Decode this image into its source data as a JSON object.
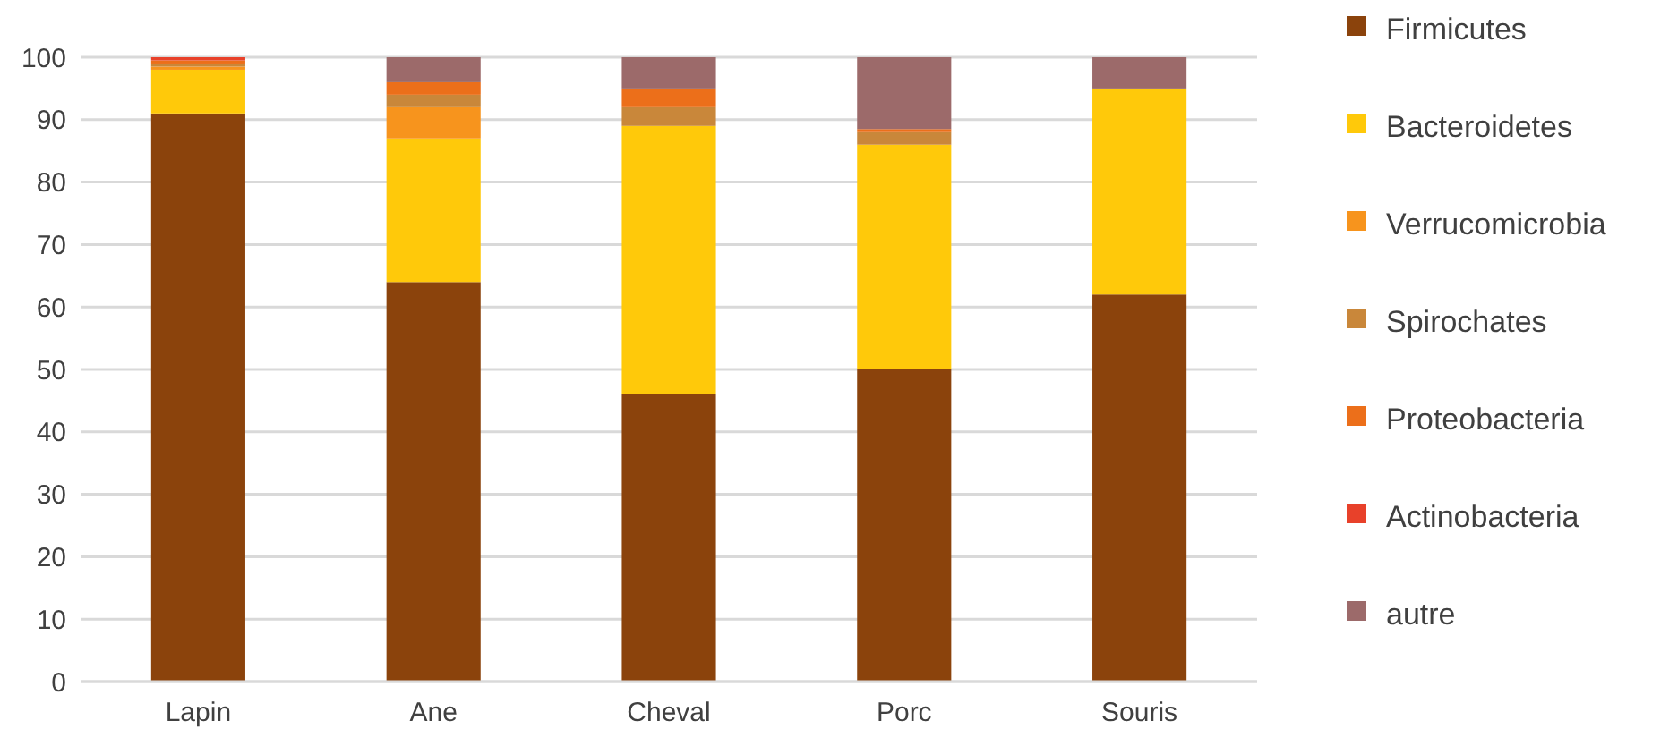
{
  "chart_data": {
    "type": "bar",
    "stacked": true,
    "categories": [
      "Lapin",
      "Ane",
      "Cheval",
      "Porc",
      "Souris"
    ],
    "series": [
      {
        "name": "Firmicutes",
        "color": "#8b430c",
        "values": [
          91,
          64,
          46,
          50,
          62
        ]
      },
      {
        "name": "Bacteroidetes",
        "color": "#ffc90a",
        "values": [
          7,
          23,
          43,
          36,
          33
        ]
      },
      {
        "name": "Verrucomicrobia",
        "color": "#f7941d",
        "values": [
          0.5,
          5,
          0,
          0,
          0
        ]
      },
      {
        "name": "Spirochates",
        "color": "#c9873a",
        "values": [
          0.5,
          2,
          3,
          2,
          0
        ]
      },
      {
        "name": "Proteobacteria",
        "color": "#ec6f1a",
        "values": [
          0.5,
          2,
          3,
          0.5,
          0
        ]
      },
      {
        "name": "Actinobacteria",
        "color": "#e8412a",
        "values": [
          0.5,
          0,
          0,
          0,
          0
        ]
      },
      {
        "name": "autre",
        "color": "#9c6a6a",
        "values": [
          0,
          4,
          5,
          11.5,
          5
        ]
      }
    ],
    "ylim": [
      0,
      100
    ],
    "yticks": [
      0,
      10,
      20,
      30,
      40,
      50,
      60,
      70,
      80,
      90,
      100
    ],
    "grid": "y",
    "legend": "right"
  }
}
